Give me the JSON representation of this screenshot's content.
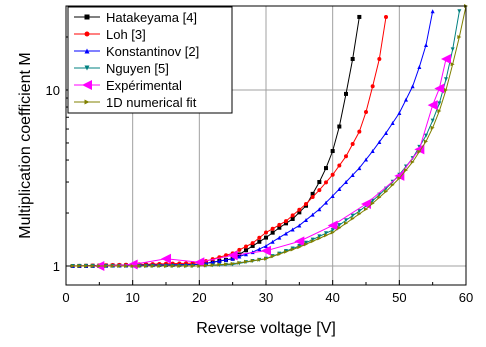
{
  "chart_data": {
    "type": "line",
    "xlabel": "Reverse voltage [V]",
    "ylabel": "Multiplication coefficient M",
    "xlim": [
      0,
      60
    ],
    "ylim": [
      0.78,
      30
    ],
    "yscale": "log",
    "x_ticks": [
      0,
      10,
      20,
      30,
      40,
      50,
      60
    ],
    "x_tick_labels": [
      "0",
      "10",
      "20",
      "30",
      "40",
      "50",
      "60"
    ],
    "y_ticks": [
      1,
      10
    ],
    "y_tick_labels": [
      "1",
      "10"
    ],
    "grid": true,
    "legend_position": "top-left",
    "series": [
      {
        "name": "Hatakeyama [4]",
        "color": "#000000",
        "marker": "square",
        "x": [
          1,
          20,
          25,
          28,
          30,
          32,
          34,
          36,
          38,
          39,
          40,
          41,
          42,
          43,
          44
        ],
        "y": [
          1.0,
          1.02,
          1.1,
          1.3,
          1.45,
          1.65,
          1.85,
          2.2,
          3.0,
          3.6,
          4.5,
          6.2,
          9.5,
          15,
          26
        ]
      },
      {
        "name": "Loh [3]",
        "color": "#ff0000",
        "marker": "circle",
        "x": [
          1,
          20,
          25,
          28,
          30,
          33,
          36,
          38,
          40,
          42,
          44,
          45,
          46,
          47,
          48
        ],
        "y": [
          1.0,
          1.04,
          1.18,
          1.35,
          1.55,
          1.8,
          2.25,
          2.7,
          3.3,
          4.2,
          5.8,
          7.5,
          10.5,
          15,
          26
        ]
      },
      {
        "name": "Konstantinov [2]",
        "color": "#0000ff",
        "marker": "triangle-up",
        "x": [
          1,
          20,
          25,
          28,
          30,
          32,
          35,
          38,
          40,
          42,
          44,
          46,
          48,
          50,
          52,
          53,
          54,
          55
        ],
        "y": [
          1.0,
          1.02,
          1.1,
          1.2,
          1.3,
          1.45,
          1.7,
          2.1,
          2.5,
          3.0,
          3.6,
          4.5,
          5.7,
          7.4,
          10.5,
          13.5,
          18,
          28
        ]
      },
      {
        "name": "Nguyen [5]",
        "color": "#008080",
        "marker": "triangle-down",
        "x": [
          1,
          20,
          25,
          30,
          35,
          40,
          42,
          44,
          46,
          48,
          50,
          52,
          54,
          55,
          56,
          57,
          58,
          59
        ],
        "y": [
          1.0,
          1.0,
          1.02,
          1.1,
          1.3,
          1.6,
          1.82,
          2.05,
          2.35,
          2.75,
          3.3,
          4.1,
          5.5,
          6.7,
          8.4,
          11.5,
          17,
          28
        ]
      },
      {
        "name": "Expérimental",
        "color": "#ff00ff",
        "marker": "triangle-left",
        "x": [
          5,
          10,
          15,
          20,
          25,
          30,
          35,
          40,
          45,
          50,
          53,
          55,
          56,
          57
        ],
        "y": [
          1.0,
          1.02,
          1.1,
          1.05,
          1.15,
          1.22,
          1.38,
          1.7,
          2.25,
          3.25,
          4.6,
          8.2,
          10.2,
          15
        ]
      },
      {
        "name": "1D numerical fit",
        "color": "#808000",
        "marker": "triangle-right",
        "x": [
          1,
          20,
          25,
          30,
          35,
          40,
          45,
          48,
          50,
          52,
          54,
          55,
          56,
          57,
          58,
          59,
          60
        ],
        "y": [
          1.0,
          1.0,
          1.03,
          1.1,
          1.28,
          1.55,
          2.1,
          2.65,
          3.15,
          3.9,
          5.1,
          6.1,
          7.6,
          10,
          14,
          20,
          30
        ]
      }
    ]
  }
}
